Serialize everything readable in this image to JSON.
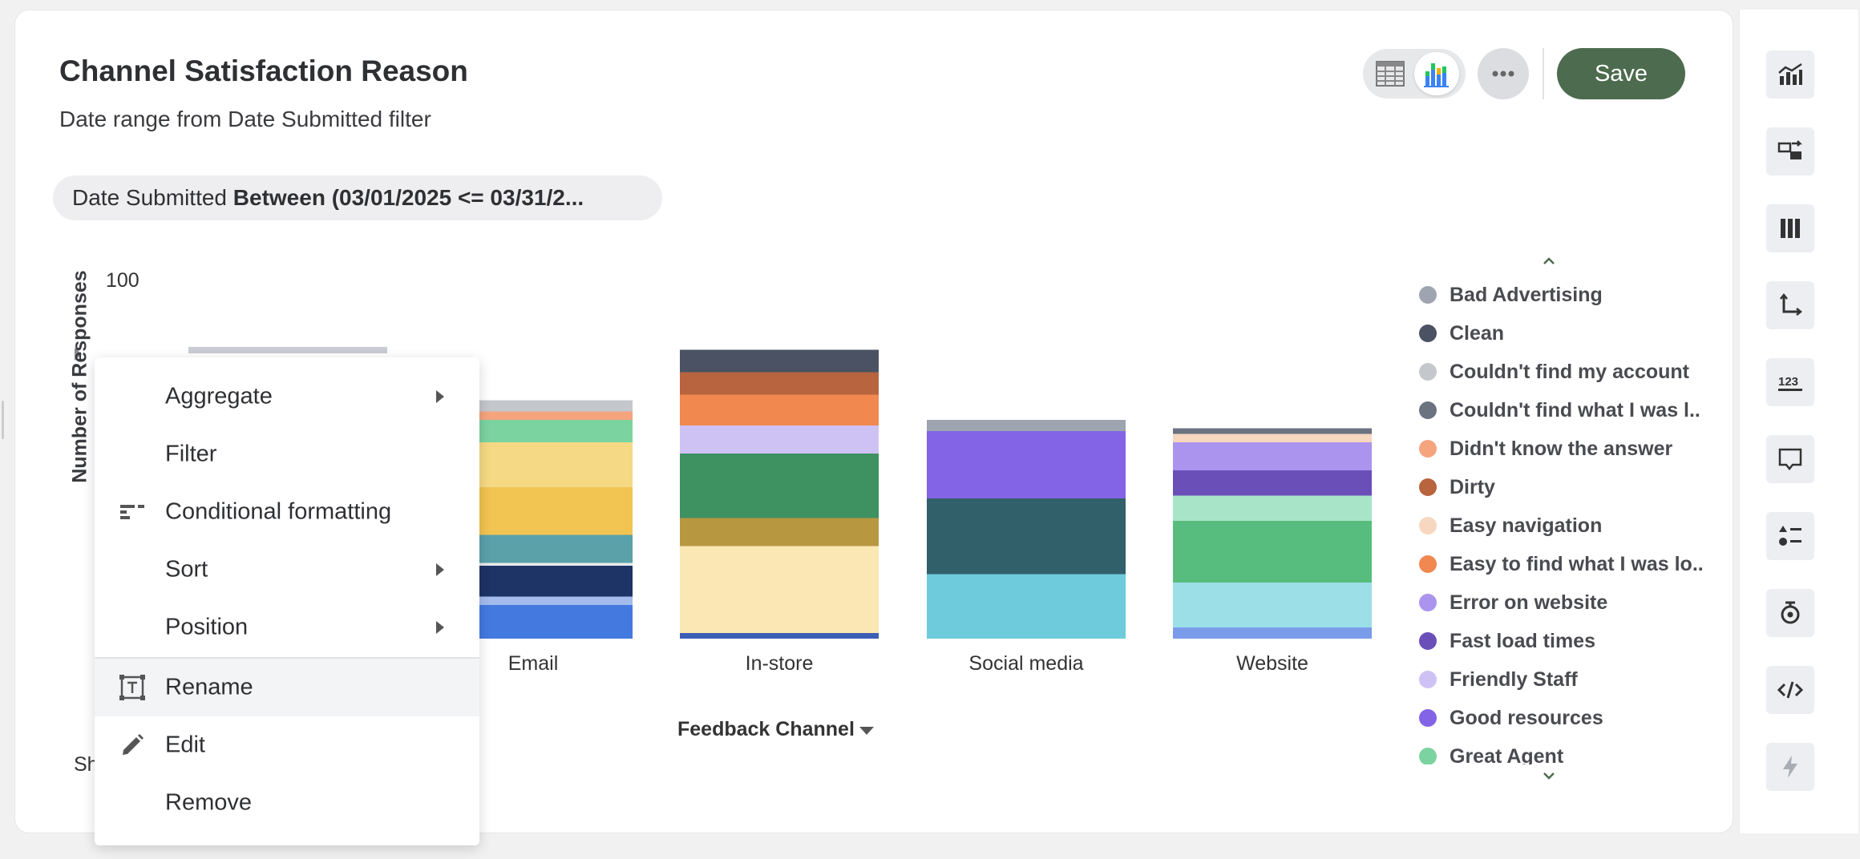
{
  "header": {
    "title": "Channel Satisfaction Reason",
    "subtitle": "Date range from Date Submitted filter",
    "save_label": "Save"
  },
  "filter": {
    "field": "Date Submitted",
    "condition": "Between (03/01/2025 <= 03/31/2..."
  },
  "chart_data": {
    "type": "bar",
    "stacked": true,
    "ylabel": "Number of Responses",
    "xlabel": "Feedback Channel",
    "y_tick_labels": [
      "100"
    ],
    "categories": [
      "Email",
      "In-store",
      "Social media",
      "Website"
    ],
    "partially_hidden_bar_top": 104,
    "stacks": [
      {
        "category": "Email",
        "segments": [
          {
            "value": 12,
            "color": "#4479e0"
          },
          {
            "value": 3,
            "color": "#a4bcec"
          },
          {
            "value": 11,
            "color": "#1e3366"
          },
          {
            "value": 1,
            "color": "#eaeaea"
          },
          {
            "value": 10,
            "color": "#5aa1aa"
          },
          {
            "value": 17,
            "color": "#f2c452"
          },
          {
            "value": 16,
            "color": "#f5d985"
          },
          {
            "value": 8,
            "color": "#7bd3a0"
          },
          {
            "value": 3,
            "color": "#f5a47e"
          },
          {
            "value": 4,
            "color": "#c4c7cc"
          }
        ]
      },
      {
        "category": "In-store",
        "segments": [
          {
            "value": 2,
            "color": "#3b5fb4"
          },
          {
            "value": 31,
            "color": "#fbe7b3"
          },
          {
            "value": 10,
            "color": "#b89741"
          },
          {
            "value": 23,
            "color": "#3e9160"
          },
          {
            "value": 10,
            "color": "#cec2f5"
          },
          {
            "value": 11,
            "color": "#f0884f"
          },
          {
            "value": 8,
            "color": "#b8643e"
          },
          {
            "value": 8,
            "color": "#4a5263"
          }
        ]
      },
      {
        "category": "Social media",
        "segments": [
          {
            "value": 23,
            "color": "#6ecbdb"
          },
          {
            "value": 27,
            "color": "#32606a"
          },
          {
            "value": 24,
            "color": "#8363e6"
          },
          {
            "value": 4,
            "color": "#9ea5b0"
          }
        ]
      },
      {
        "category": "Website",
        "segments": [
          {
            "value": 4,
            "color": "#7b9ceb"
          },
          {
            "value": 16,
            "color": "#9cdfe6"
          },
          {
            "value": 22,
            "color": "#57bd7e"
          },
          {
            "value": 9,
            "color": "#a8e5c8"
          },
          {
            "value": 9,
            "color": "#6a4fb9"
          },
          {
            "value": 10,
            "color": "#ab94ee"
          },
          {
            "value": 3,
            "color": "#f7d7c0"
          },
          {
            "value": 2,
            "color": "#6b7280"
          }
        ]
      }
    ],
    "legend": [
      {
        "label": "Bad Advertising",
        "color": "#9ea5b0"
      },
      {
        "label": "Clean",
        "color": "#4a5263"
      },
      {
        "label": "Couldn't find my account",
        "color": "#c4c7cc"
      },
      {
        "label": "Couldn't find what I was l..",
        "color": "#6b7280"
      },
      {
        "label": "Didn't know the answer",
        "color": "#f5a47e"
      },
      {
        "label": "Dirty",
        "color": "#b8643e"
      },
      {
        "label": "Easy navigation",
        "color": "#f7d7c0"
      },
      {
        "label": "Easy to find what I was lo..",
        "color": "#f0884f"
      },
      {
        "label": "Error on website",
        "color": "#ab94ee"
      },
      {
        "label": "Fast load times",
        "color": "#6a4fb9"
      },
      {
        "label": "Friendly Staff",
        "color": "#cec2f5"
      },
      {
        "label": "Good resources",
        "color": "#8363e6"
      },
      {
        "label": "Great Agent",
        "color": "#7bd3a0"
      }
    ],
    "legend_position": "right"
  },
  "footer": {
    "truncated_text": "Sh"
  },
  "context_menu": {
    "items": [
      {
        "key": "aggregate",
        "label": "Aggregate",
        "has_submenu": true
      },
      {
        "key": "filter",
        "label": "Filter",
        "has_submenu": false
      },
      {
        "key": "conditional_formatting",
        "label": "Conditional formatting",
        "has_submenu": false,
        "icon": "conditional-formatting-icon"
      },
      {
        "key": "sort",
        "label": "Sort",
        "has_submenu": true
      },
      {
        "key": "position",
        "label": "Position",
        "has_submenu": true
      },
      {
        "key": "rename",
        "label": "Rename",
        "has_submenu": false,
        "icon": "rename-icon",
        "highlighted": true
      },
      {
        "key": "edit",
        "label": "Edit",
        "has_submenu": false,
        "icon": "pencil-icon"
      },
      {
        "key": "remove",
        "label": "Remove",
        "has_submenu": false
      }
    ]
  },
  "rail": {
    "icons": [
      "chart-type-icon",
      "swap-axis-icon",
      "columns-icon",
      "axis-icon",
      "number-format-icon",
      "comment-icon",
      "list-icon",
      "goal-icon",
      "code-icon",
      "lightning-icon"
    ]
  },
  "colors": {
    "save_button": "#4d6b4e",
    "accent": "#4d6b4e"
  }
}
